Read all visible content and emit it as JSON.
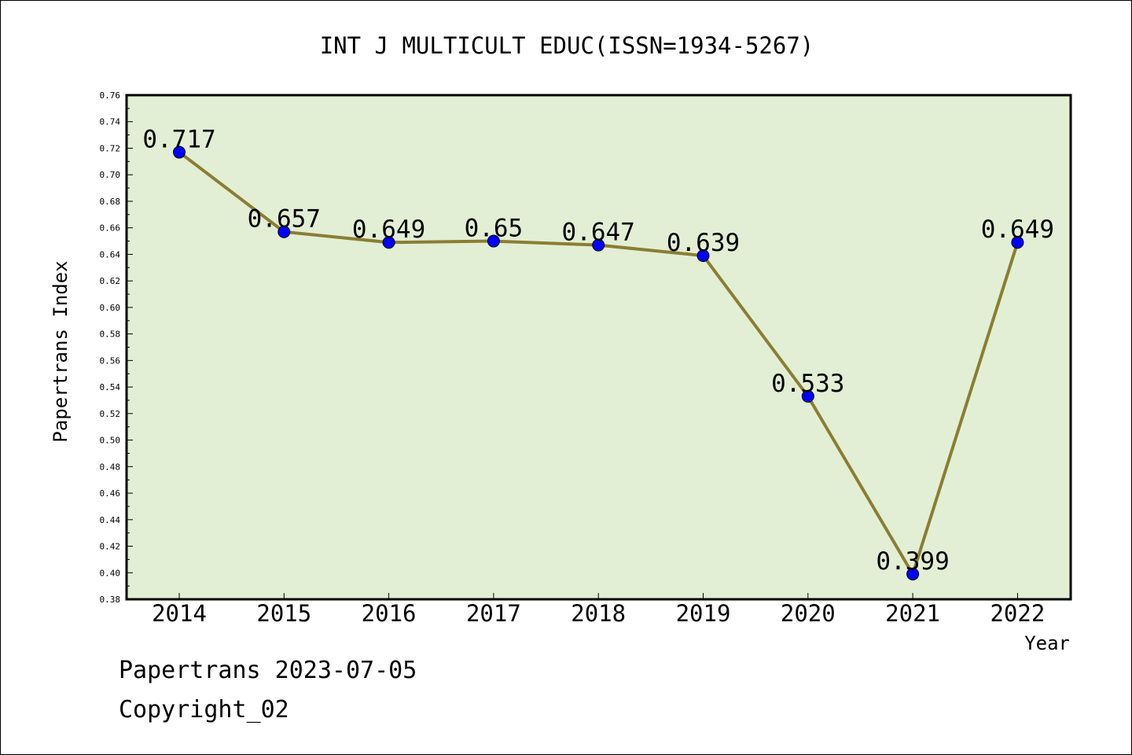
{
  "chart_data": {
    "type": "line",
    "title": "INT J MULTICULT EDUC(ISSN=1934-5267)",
    "xlabel": "Year",
    "ylabel": "Papertrans Index",
    "categories": [
      "2014",
      "2015",
      "2016",
      "2017",
      "2018",
      "2019",
      "2020",
      "2021",
      "2022"
    ],
    "values": [
      0.717,
      0.657,
      0.649,
      0.65,
      0.647,
      0.639,
      0.533,
      0.399,
      0.649
    ],
    "value_labels": [
      "0.717",
      "0.657",
      "0.649",
      "0.65",
      "0.647",
      "0.639",
      "0.533",
      "0.399",
      "0.649"
    ],
    "ylim": [
      0.38,
      0.76
    ],
    "yticks": [
      "0.38",
      "0.40",
      "0.42",
      "0.44",
      "0.46",
      "0.48",
      "0.50",
      "0.52",
      "0.54",
      "0.56",
      "0.58",
      "0.60",
      "0.62",
      "0.64",
      "0.66",
      "0.68",
      "0.70",
      "0.72",
      "0.74",
      "0.76"
    ],
    "grid": false,
    "colors": {
      "plot_background": "#e2efd4",
      "line": "#8b7d32",
      "marker": "#0000ff"
    }
  },
  "footer": {
    "date_text": "Papertrans 2023-07-05",
    "copyright": "Copyright_02"
  }
}
